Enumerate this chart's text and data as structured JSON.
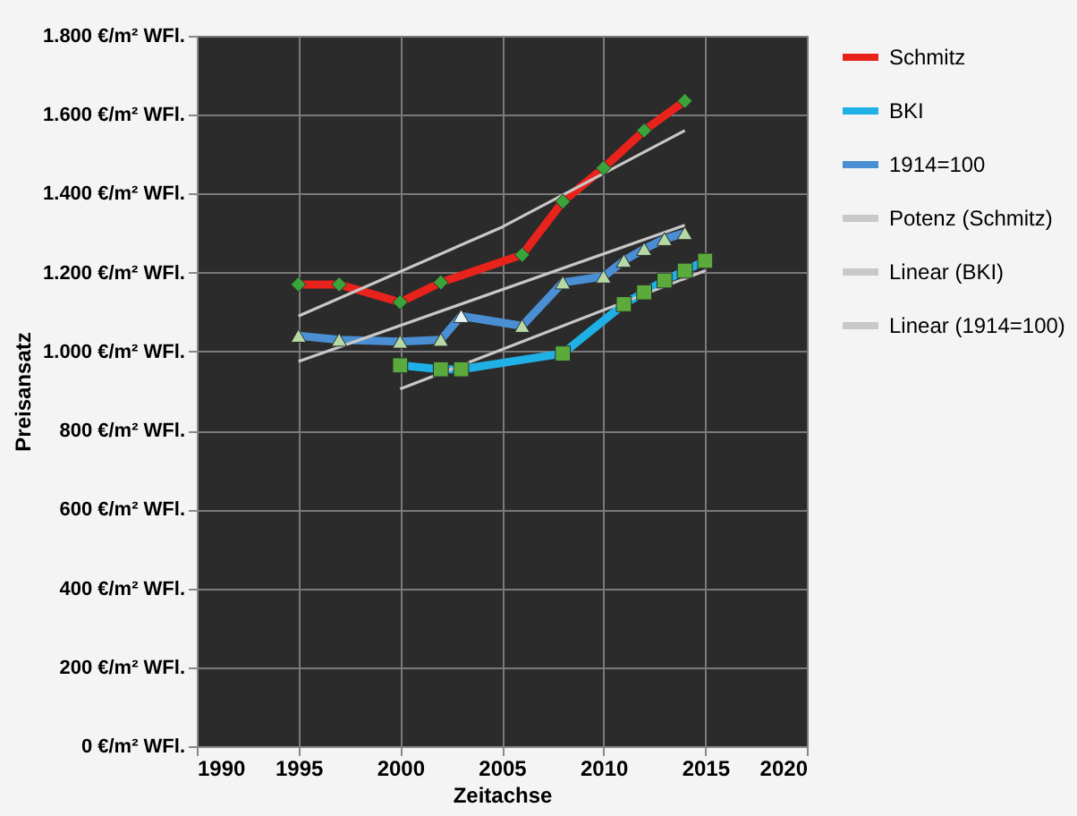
{
  "chart_data": {
    "type": "line",
    "xlabel": "Zeitachse",
    "ylabel": "Preisansatz",
    "xlim": [
      1990,
      2020
    ],
    "xticks": [
      1990,
      1995,
      2000,
      2005,
      2010,
      2015,
      2020
    ],
    "ylim": [
      0,
      1800
    ],
    "yticks": [
      {
        "value": 0,
        "label": "0 €/m² WFl."
      },
      {
        "value": 200,
        "label": "200 €/m² WFl."
      },
      {
        "value": 400,
        "label": "400 €/m² WFl."
      },
      {
        "value": 600,
        "label": "600 €/m² WFl."
      },
      {
        "value": 800,
        "label": "800 €/m² WFl."
      },
      {
        "value": 1000,
        "label": "1.000 €/m² WFl."
      },
      {
        "value": 1200,
        "label": "1.200 €/m² WFl."
      },
      {
        "value": 1400,
        "label": "1.400 €/m² WFl."
      },
      {
        "value": 1600,
        "label": "1.600 €/m² WFl."
      },
      {
        "value": 1800,
        "label": "1.800 €/m² WFl."
      }
    ],
    "grid": true,
    "legend": "right",
    "line_style": "solid",
    "series": [
      {
        "name": "Schmitz",
        "color": "#e8231c",
        "marker": "diamond",
        "x": [
          1995,
          1997,
          2000,
          2002,
          2006,
          2008,
          2010,
          2012,
          2014
        ],
        "values": [
          1170,
          1170,
          1125,
          1175,
          1245,
          1380,
          1465,
          1560,
          1635
        ],
        "colors": [
          "#3aa43a",
          "#3aa43a",
          "#3aa43a",
          "#3aa43a",
          "#3aa43a",
          "#3aa43a",
          "#3aa43a",
          "#3aa43a",
          "#3aa43a"
        ]
      },
      {
        "name": "BKI",
        "color": "#1fb1e6",
        "marker": "square",
        "x": [
          2000,
          2002,
          2003,
          2008,
          2011,
          2012,
          2013,
          2014,
          2015
        ],
        "values": [
          965,
          955,
          955,
          995,
          1120,
          1150,
          1180,
          1205,
          1230
        ],
        "colors": [
          "#5aab3c",
          "#5aab3c",
          "#5aab3c",
          "#5aab3c",
          "#5aab3c",
          "#5aab3c",
          "#5aab3c",
          "#5aab3c",
          "#5aab3c"
        ]
      },
      {
        "name": "1914=100",
        "color": "#4a8fd4",
        "marker": "triangle",
        "x": [
          1995,
          1997,
          2000,
          2002,
          2003,
          2006,
          2008,
          2010,
          2011,
          2012,
          2013,
          2014
        ],
        "values": [
          1040,
          1030,
          1025,
          1030,
          1090,
          1065,
          1175,
          1190,
          1230,
          1260,
          1285,
          1300
        ],
        "colors": [
          "#b5d8a4",
          "#b5d8a4",
          "#b5d8a4",
          "#b5d8a4",
          "#e6f2ee",
          "#b5d8a4",
          "#b5d8a4",
          "#b5d8a4",
          "#b5d8a4",
          "#b5d8a4",
          "#b5d8a4",
          "#b5d8a4"
        ]
      },
      {
        "name": "Potenz (Schmitz)",
        "color": "#c8c8c8",
        "marker": "none",
        "x": [
          1995,
          2005,
          2014
        ],
        "values": [
          1090,
          1315,
          1560
        ]
      },
      {
        "name": "Linear (BKI)",
        "color": "#c8c8c8",
        "marker": "none",
        "x": [
          2000,
          2015
        ],
        "values": [
          905,
          1205
        ]
      },
      {
        "name": "Linear (1914=100)",
        "color": "#c8c8c8",
        "marker": "none",
        "x": [
          1995,
          2014
        ],
        "values": [
          975,
          1320
        ]
      }
    ]
  }
}
